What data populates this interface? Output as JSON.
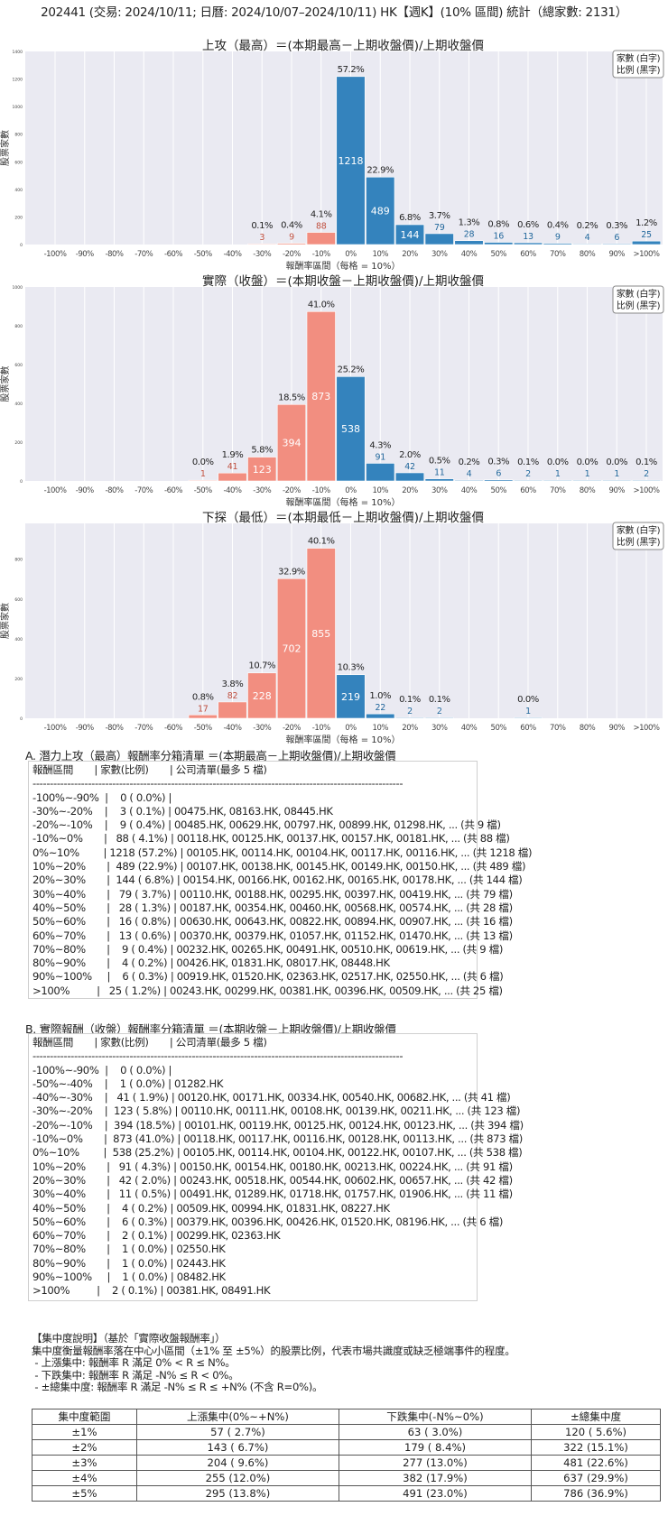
{
  "header": {
    "title": "202441 (交易: 2024/10/11; 日曆: 2024/10/07–2024/10/11) HK【週K】(10% 區間) 統計（總家數: 2131）"
  },
  "colors": {
    "negative": "#f28e80",
    "positive": "#3483bd",
    "plot_bg": "#eaeaf2",
    "grid": "#ffffff"
  },
  "chart_data": [
    {
      "type": "bar",
      "title": "上攻（最高）＝(本期最高－上期收盤價)/上期收盤價",
      "xlabel": "報酬率區間（每格 = 10%）",
      "ylabel": "股票家數",
      "legend": [
        "家數 (白字)",
        "比例 (黑字)"
      ],
      "legend_position": "top-right",
      "grid": "vertical",
      "ylim": [
        0,
        1400
      ],
      "yticks": [
        0,
        200,
        400,
        600,
        800,
        1000,
        1200,
        1400
      ],
      "categories": [
        "-100%",
        "-90%",
        "-80%",
        "-70%",
        "-60%",
        "-50%",
        "-40%",
        "-30%",
        "-20%",
        "-10%",
        "0%",
        "10%",
        "20%",
        "30%",
        "40%",
        "50%",
        "60%",
        "70%",
        "80%",
        "90%",
        ">100%"
      ],
      "values": [
        0,
        0,
        0,
        0,
        0,
        0,
        0,
        3,
        9,
        88,
        1218,
        489,
        144,
        79,
        28,
        16,
        13,
        9,
        4,
        6,
        25
      ],
      "pct_labels": [
        null,
        null,
        null,
        null,
        null,
        null,
        null,
        "0.1%",
        "0.4%",
        "4.1%",
        "57.2%",
        "22.9%",
        "6.8%",
        "3.7%",
        "1.3%",
        "0.8%",
        "0.6%",
        "0.4%",
        "0.2%",
        "0.3%",
        "1.2%"
      ]
    },
    {
      "type": "bar",
      "title": "實際（收盤）＝(本期收盤－上期收盤價)/上期收盤價",
      "xlabel": "報酬率區間（每格 = 10%）",
      "ylabel": "股票家數",
      "legend": [
        "家數 (白字)",
        "比例 (黑字)"
      ],
      "legend_position": "top-right",
      "grid": "vertical",
      "ylim": [
        0,
        1000
      ],
      "yticks": [
        0,
        200,
        400,
        600,
        800,
        1000
      ],
      "categories": [
        "-100%",
        "-90%",
        "-80%",
        "-70%",
        "-60%",
        "-50%",
        "-40%",
        "-30%",
        "-20%",
        "-10%",
        "0%",
        "10%",
        "20%",
        "30%",
        "40%",
        "50%",
        "60%",
        "70%",
        "80%",
        "90%",
        ">100%"
      ],
      "values": [
        0,
        0,
        0,
        0,
        0,
        1,
        41,
        123,
        394,
        873,
        538,
        91,
        42,
        11,
        4,
        6,
        2,
        1,
        1,
        1,
        2
      ],
      "pct_labels": [
        null,
        null,
        null,
        null,
        null,
        "0.0%",
        "1.9%",
        "5.8%",
        "18.5%",
        "41.0%",
        "25.2%",
        "4.3%",
        "2.0%",
        "0.5%",
        "0.2%",
        "0.3%",
        "0.1%",
        "0.0%",
        "0.0%",
        "0.0%",
        "0.1%"
      ]
    },
    {
      "type": "bar",
      "title": "下探（最低）＝(本期最低－上期收盤價)/上期收盤價",
      "xlabel": "報酬率區間（每格 = 10%）",
      "ylabel": "股票家數",
      "legend": [
        "家數 (白字)",
        "比例 (黑字)"
      ],
      "legend_position": "top-right",
      "grid": "vertical",
      "ylim": [
        0,
        980
      ],
      "yticks": [
        0,
        200,
        400,
        600,
        800
      ],
      "categories": [
        "-100%",
        "-90%",
        "-80%",
        "-70%",
        "-60%",
        "-50%",
        "-40%",
        "-30%",
        "-20%",
        "-10%",
        "0%",
        "10%",
        "20%",
        "30%",
        "40%",
        "50%",
        "60%",
        "70%",
        "80%",
        "90%",
        ">100%"
      ],
      "values": [
        0,
        0,
        0,
        0,
        0,
        17,
        82,
        228,
        702,
        855,
        219,
        22,
        2,
        2,
        0,
        0,
        1,
        0,
        0,
        0,
        0
      ],
      "pct_labels": [
        null,
        null,
        null,
        null,
        null,
        "0.8%",
        "3.8%",
        "10.7%",
        "32.9%",
        "40.1%",
        "10.3%",
        "1.0%",
        "0.1%",
        "0.1%",
        null,
        null,
        "0.0%",
        null,
        null,
        null,
        null
      ]
    }
  ],
  "section_a": {
    "title": "A. 潛力上攻（最高）報酬率分箱清單 ＝(本期最高－上期收盤價)/上期收盤價",
    "header": "報酬區間       | 家數(比例)       | 公司清單(最多 5 檔)",
    "separator": "-----------------------------------------------------------------------------------------------------------",
    "rows": [
      "-100%~-90%  |    0 ( 0.0%) |",
      "-30%~-20%    |    3 ( 0.1%) | 00475.HK, 08163.HK, 08445.HK",
      "-20%~-10%    |    9 ( 0.4%) | 00485.HK, 00629.HK, 00797.HK, 00899.HK, 01298.HK, ... (共 9 檔)",
      "-10%~0%       |   88 ( 4.1%) | 00118.HK, 00125.HK, 00137.HK, 00157.HK, 00181.HK, ... (共 88 檔)",
      "0%~10%        | 1218 (57.2%) | 00105.HK, 00114.HK, 00104.HK, 00117.HK, 00116.HK, ... (共 1218 檔)",
      "10%~20%       |  489 (22.9%) | 00107.HK, 00138.HK, 00145.HK, 00149.HK, 00150.HK, ... (共 489 檔)",
      "20%~30%       |  144 ( 6.8%) | 00154.HK, 00166.HK, 00162.HK, 00165.HK, 00178.HK, ... (共 144 檔)",
      "30%~40%       |   79 ( 3.7%) | 00110.HK, 00188.HK, 00295.HK, 00397.HK, 00419.HK, ... (共 79 檔)",
      "40%~50%       |   28 ( 1.3%) | 00187.HK, 00354.HK, 00460.HK, 00568.HK, 00574.HK, ... (共 28 檔)",
      "50%~60%       |   16 ( 0.8%) | 00630.HK, 00643.HK, 00822.HK, 00894.HK, 00907.HK, ... (共 16 檔)",
      "60%~70%       |   13 ( 0.6%) | 00370.HK, 00379.HK, 01057.HK, 01152.HK, 01470.HK, ... (共 13 檔)",
      "70%~80%       |    9 ( 0.4%) | 00232.HK, 00265.HK, 00491.HK, 00510.HK, 00619.HK, ... (共 9 檔)",
      "80%~90%       |    4 ( 0.2%) | 00426.HK, 01831.HK, 08017.HK, 08448.HK",
      "90%~100%     |    6 ( 0.3%) | 00919.HK, 01520.HK, 02363.HK, 02517.HK, 02550.HK, ... (共 6 檔)",
      ">100%         |   25 ( 1.2%) | 00243.HK, 00299.HK, 00381.HK, 00396.HK, 00509.HK, ... (共 25 檔)"
    ]
  },
  "section_b": {
    "title": "B. 實際報酬（收盤）報酬率分箱清單 ＝(本期收盤－上期收盤價)/上期收盤價",
    "header": "報酬區間       | 家數(比例)       | 公司清單(最多 5 檔)",
    "separator": "-----------------------------------------------------------------------------------------------------------",
    "rows": [
      "-100%~-90%  |    0 ( 0.0%) |",
      "-50%~-40%    |    1 ( 0.0%) | 01282.HK",
      "-40%~-30%    |   41 ( 1.9%) | 00120.HK, 00171.HK, 00334.HK, 00540.HK, 00682.HK, ... (共 41 檔)",
      "-30%~-20%    |  123 ( 5.8%) | 00110.HK, 00111.HK, 00108.HK, 00139.HK, 00211.HK, ... (共 123 檔)",
      "-20%~-10%    |  394 (18.5%) | 00101.HK, 00119.HK, 00125.HK, 00124.HK, 00123.HK, ... (共 394 檔)",
      "-10%~0%       |  873 (41.0%) | 00118.HK, 00117.HK, 00116.HK, 00128.HK, 00113.HK, ... (共 873 檔)",
      "0%~10%        |  538 (25.2%) | 00105.HK, 00114.HK, 00104.HK, 00122.HK, 00107.HK, ... (共 538 檔)",
      "10%~20%       |   91 ( 4.3%) | 00150.HK, 00154.HK, 00180.HK, 00213.HK, 00224.HK, ... (共 91 檔)",
      "20%~30%       |   42 ( 2.0%) | 00243.HK, 00518.HK, 00544.HK, 00602.HK, 00657.HK, ... (共 42 檔)",
      "30%~40%       |   11 ( 0.5%) | 00491.HK, 01289.HK, 01718.HK, 01757.HK, 01906.HK, ... (共 11 檔)",
      "40%~50%       |    4 ( 0.2%) | 00509.HK, 00994.HK, 01831.HK, 08227.HK",
      "50%~60%       |    6 ( 0.3%) | 00379.HK, 00396.HK, 00426.HK, 01520.HK, 08196.HK, ... (共 6 檔)",
      "60%~70%       |    2 ( 0.1%) | 00299.HK, 02363.HK",
      "70%~80%       |    1 ( 0.0%) | 02550.HK",
      "80%~90%       |    1 ( 0.0%) | 02443.HK",
      "90%~100%     |    1 ( 0.0%) | 08482.HK",
      ">100%         |    2 ( 0.1%) | 00381.HK, 08491.HK"
    ]
  },
  "concentration": {
    "lines": [
      "【集中度說明】（基於「實際收盤報酬率」）",
      "集中度衡量報酬率落在中心小區間（±1% 至 ±5%）的股票比例，代表市場共識度或缺乏極端事件的程度。",
      " - 上漲集中: 報酬率 R 滿足 0% < R ≤ N%。",
      " - 下跌集中: 報酬率 R 滿足 -N% ≤ R < 0%。",
      " - ±總集中度: 報酬率 R 滿足 -N% ≤ R ≤ +N% (不含 R=0%)。"
    ],
    "columns": [
      "集中度範圍",
      "上漲集中(0%~+N%)",
      "下跌集中(-N%~0%)",
      "±總集中度"
    ],
    "rows": [
      [
        "±1%",
        "57 ( 2.7%)",
        "63 ( 3.0%)",
        "120 ( 5.6%)"
      ],
      [
        "±2%",
        "143 ( 6.7%)",
        "179 ( 8.4%)",
        "322 (15.1%)"
      ],
      [
        "±3%",
        "204 ( 9.6%)",
        "277 (13.0%)",
        "481 (22.6%)"
      ],
      [
        "±4%",
        "255 (12.0%)",
        "382 (17.9%)",
        "637 (29.9%)"
      ],
      [
        "±5%",
        "295 (13.8%)",
        "491 (23.0%)",
        "786 (36.9%)"
      ]
    ]
  }
}
